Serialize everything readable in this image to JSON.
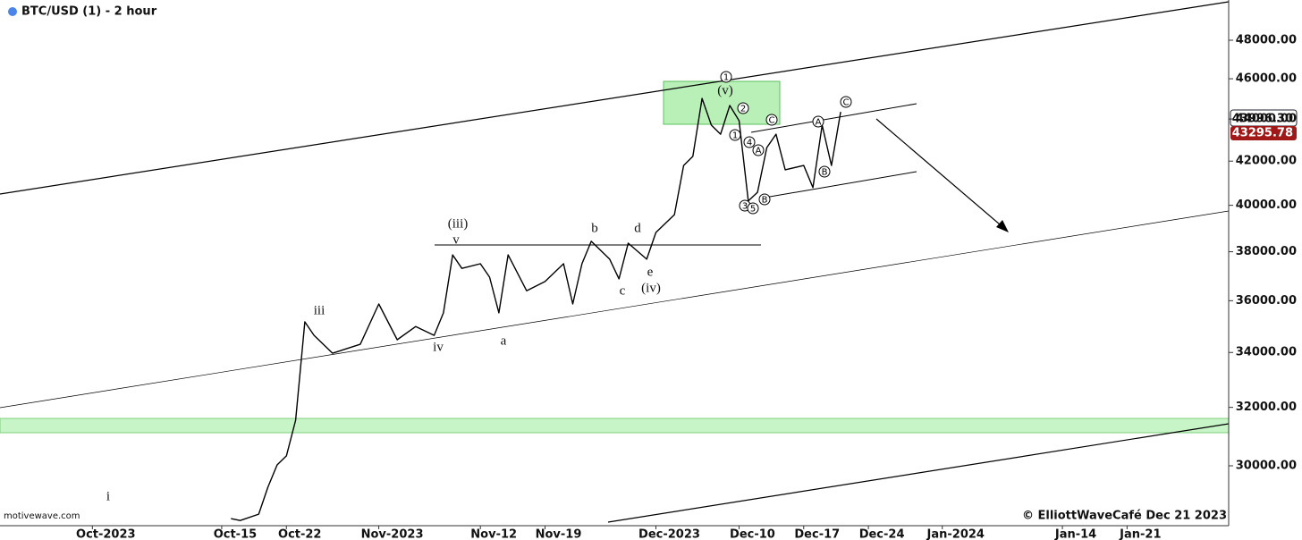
{
  "chart_data": {
    "type": "line",
    "title": "BTC/USD (1) - 2 hour",
    "source": "motivewave.com",
    "credit": "© ElliottWaveCafé Dec 21 2023",
    "price_labels": [
      {
        "value": 43996.3,
        "label": "43996.30"
      },
      {
        "value": 43295.78,
        "label": "43295.78"
      }
    ],
    "log_scale": true,
    "grid": false,
    "xlim": [
      "2023-09-21",
      "2024-02-01"
    ],
    "xticks": [
      {
        "value": "2023-10-01",
        "label": "Oct-2023"
      },
      {
        "value": "2023-10-15",
        "label": "Oct-15"
      },
      {
        "value": "2023-10-22",
        "label": "Oct-22"
      },
      {
        "value": "2023-11-01",
        "label": "Nov-2023"
      },
      {
        "value": "2023-11-12",
        "label": "Nov-12"
      },
      {
        "value": "2023-11-19",
        "label": "Nov-19"
      },
      {
        "value": "2023-12-01",
        "label": "Dec-2023"
      },
      {
        "value": "2023-12-10",
        "label": "Dec-10"
      },
      {
        "value": "2023-12-17",
        "label": "Dec-17"
      },
      {
        "value": "2023-12-24",
        "label": "Dec-24"
      },
      {
        "value": "2024-01-01",
        "label": "Jan-2024"
      },
      {
        "value": "2024-01-14",
        "label": "Jan-14"
      },
      {
        "value": "2024-01-21",
        "label": "Jan-21"
      }
    ],
    "ylim": [
      28080,
      50180
    ],
    "yticks": [
      {
        "value": 30000,
        "label": "30000.00"
      },
      {
        "value": 32000,
        "label": "32000.00"
      },
      {
        "value": 34000,
        "label": "34000.00"
      },
      {
        "value": 36000,
        "label": "36000.00"
      },
      {
        "value": 38000,
        "label": "38000.00"
      },
      {
        "value": 40000,
        "label": "40000.00"
      },
      {
        "value": 42000,
        "label": "42000.00"
      },
      {
        "value": 44000,
        "label": "44000.00"
      },
      {
        "value": 46000,
        "label": "46000.00"
      },
      {
        "value": 48000,
        "label": "48000.00"
      }
    ],
    "x": [
      "2023-10-16",
      "2023-10-17",
      "2023-10-19",
      "2023-10-20",
      "2023-10-21",
      "2023-10-22",
      "2023-10-23",
      "2023-10-24",
      "2023-10-25",
      "2023-10-27",
      "2023-10-30",
      "2023-11-01",
      "2023-11-03",
      "2023-11-05",
      "2023-11-07",
      "2023-11-08",
      "2023-11-09",
      "2023-11-10",
      "2023-11-12",
      "2023-11-13",
      "2023-11-14",
      "2023-11-15",
      "2023-11-17",
      "2023-11-19",
      "2023-11-21",
      "2023-11-22",
      "2023-11-23",
      "2023-11-24",
      "2023-11-26",
      "2023-11-27",
      "2023-11-28",
      "2023-11-30",
      "2023-12-01",
      "2023-12-03",
      "2023-12-04",
      "2023-12-05",
      "2023-12-06",
      "2023-12-07",
      "2023-12-08",
      "2023-12-09",
      "2023-12-10",
      "2023-12-11",
      "2023-12-12",
      "2023-12-13",
      "2023-12-14",
      "2023-12-15",
      "2023-12-17",
      "2023-12-18",
      "2023-12-19",
      "2023-12-20",
      "2023-12-21"
    ],
    "series": [
      {
        "name": "BTC/USD",
        "color": "#000000",
        "values": [
          28300,
          28240,
          28440,
          29300,
          30030,
          30330,
          31550,
          35170,
          34650,
          33970,
          34310,
          35870,
          34480,
          34990,
          34650,
          35520,
          37870,
          37310,
          37500,
          36950,
          35520,
          37870,
          36400,
          36770,
          37500,
          35870,
          37500,
          38440,
          37690,
          36880,
          38360,
          37690,
          38820,
          39590,
          41800,
          42220,
          45010,
          43700,
          43270,
          44660,
          43920,
          40190,
          40580,
          42630,
          43270,
          41600,
          41800,
          40790,
          43700,
          41800,
          44350
        ]
      }
    ],
    "annotations": [
      "i",
      "iii",
      "iv",
      "v",
      "(iii)",
      "a",
      "b",
      "c",
      "d",
      "e",
      "(iv)",
      "(v)",
      "1",
      "2",
      "1",
      "4",
      "A",
      "3",
      "5",
      "B",
      "C",
      "A",
      "B",
      "C"
    ]
  }
}
